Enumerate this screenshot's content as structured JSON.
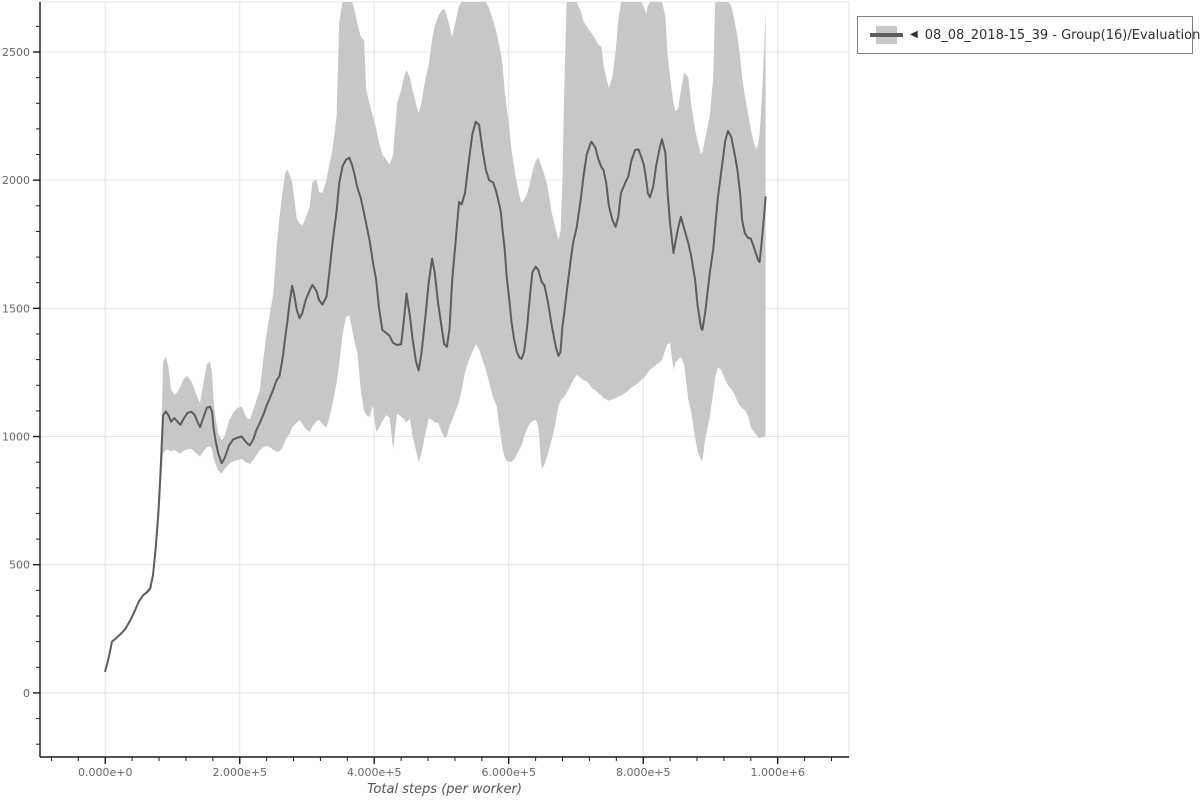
{
  "colors": {
    "background": "#ffffff",
    "band": "#c7c7c7",
    "line": "#5d5d5d",
    "grid": "#e5e5e5",
    "outline": "#e5e5e5",
    "axis": "#1a1a1a",
    "tick_label": "#666666",
    "axis_title": "#555555",
    "legend_border": "#808080",
    "legend_text": "#2f2f2f"
  },
  "legend": {
    "marker": "◀",
    "label": "08_08_2018-15_39 - Group(16)/Evaluation Reward"
  },
  "chart_data": {
    "type": "line",
    "title": "",
    "xlabel": "Total steps (per worker)",
    "ylabel": "",
    "series": [
      {
        "name": "08_08_2018-15_39 - Group(16)/Evaluation Reward",
        "style": "mean line with std-dev band"
      }
    ],
    "grid": true,
    "legend_position": "top-right-outside",
    "xlim": [
      -97000,
      1106000
    ],
    "ylim": [
      -250,
      2695
    ],
    "x_unit_multiplier": 1000,
    "x_ticks": [
      {
        "v": 0,
        "label": "0.000e+0"
      },
      {
        "v": 200000,
        "label": "2.000e+5"
      },
      {
        "v": 400000,
        "label": "4.000e+5"
      },
      {
        "v": 600000,
        "label": "6.000e+5"
      },
      {
        "v": 800000,
        "label": "8.000e+5"
      },
      {
        "v": 1000000,
        "label": "1.000e+6"
      }
    ],
    "y_ticks": [
      {
        "v": 0,
        "label": "0"
      },
      {
        "v": 500,
        "label": "500"
      },
      {
        "v": 1000,
        "label": "1000"
      },
      {
        "v": 1500,
        "label": "1500"
      },
      {
        "v": 2000,
        "label": "2000"
      },
      {
        "v": 2500,
        "label": "2500"
      }
    ],
    "x_minor": {
      "step": 40000,
      "from": -80000,
      "to": 1080000
    },
    "y_minor": {
      "step": 100,
      "from": -200,
      "to": 2600
    },
    "points_format": [
      "steps_k",
      "mean",
      "band_low",
      "band_high"
    ],
    "points": [
      [
        0,
        85,
        85,
        85
      ],
      [
        5,
        135,
        135,
        135
      ],
      [
        10,
        200,
        200,
        200
      ],
      [
        16,
        213,
        213,
        213
      ],
      [
        23,
        230,
        230,
        230
      ],
      [
        30,
        250,
        250,
        250
      ],
      [
        37,
        282,
        282,
        282
      ],
      [
        44,
        320,
        320,
        320
      ],
      [
        50,
        357,
        357,
        357
      ],
      [
        56,
        380,
        380,
        380
      ],
      [
        62,
        393,
        386,
        400
      ],
      [
        67,
        408,
        396,
        422
      ],
      [
        71,
        460,
        438,
        484
      ],
      [
        75,
        565,
        528,
        600
      ],
      [
        79,
        705,
        645,
        762
      ],
      [
        82,
        850,
        765,
        930
      ],
      [
        84,
        965,
        858,
        1072
      ],
      [
        86,
        1082,
        932,
        1290
      ],
      [
        90,
        1098,
        948,
        1312
      ],
      [
        94,
        1083,
        948,
        1272
      ],
      [
        98,
        1058,
        942,
        1182
      ],
      [
        103,
        1072,
        948,
        1162
      ],
      [
        108,
        1056,
        938,
        1176
      ],
      [
        112,
        1046,
        933,
        1196
      ],
      [
        116,
        1066,
        944,
        1222
      ],
      [
        122,
        1092,
        950,
        1236
      ],
      [
        128,
        1097,
        952,
        1216
      ],
      [
        133,
        1084,
        940,
        1182
      ],
      [
        138,
        1052,
        928,
        1146
      ],
      [
        141,
        1037,
        922,
        1132
      ],
      [
        145,
        1066,
        938,
        1192
      ],
      [
        151,
        1112,
        958,
        1282
      ],
      [
        156,
        1116,
        962,
        1292
      ],
      [
        159,
        1094,
        948,
        1242
      ],
      [
        161,
        1035,
        918,
        1142
      ],
      [
        164,
        985,
        893,
        1072
      ],
      [
        168,
        935,
        868,
        1012
      ],
      [
        173,
        896,
        856,
        986
      ],
      [
        178,
        918,
        874,
        1002
      ],
      [
        184,
        965,
        893,
        1062
      ],
      [
        190,
        988,
        903,
        1092
      ],
      [
        197,
        996,
        908,
        1112
      ],
      [
        203,
        1000,
        913,
        1116
      ],
      [
        207,
        986,
        903,
        1092
      ],
      [
        211,
        974,
        898,
        1072
      ],
      [
        215,
        966,
        893,
        1066
      ],
      [
        220,
        988,
        908,
        1102
      ],
      [
        225,
        1026,
        928,
        1142
      ],
      [
        230,
        1054,
        948,
        1182
      ],
      [
        235,
        1085,
        958,
        1302
      ],
      [
        240,
        1120,
        963,
        1402
      ],
      [
        245,
        1152,
        958,
        1482
      ],
      [
        250,
        1185,
        948,
        1562
      ],
      [
        255,
        1220,
        940,
        1740
      ],
      [
        259,
        1235,
        942,
        1852
      ],
      [
        264,
        1310,
        958,
        1962
      ],
      [
        268,
        1395,
        988,
        2032
      ],
      [
        271,
        1452,
        1000,
        2040
      ],
      [
        274,
        1520,
        1008,
        2022
      ],
      [
        278,
        1588,
        1037,
        1993
      ],
      [
        281,
        1552,
        1044,
        1930
      ],
      [
        285,
        1492,
        1054,
        1848
      ],
      [
        289,
        1462,
        1065,
        1833
      ],
      [
        293,
        1482,
        1050,
        1822
      ],
      [
        298,
        1532,
        1030,
        1852
      ],
      [
        304,
        1570,
        1018,
        1896
      ],
      [
        308,
        1592,
        1040,
        1993
      ],
      [
        314,
        1568,
        1060,
        2001
      ],
      [
        318,
        1532,
        1065,
        1954
      ],
      [
        323,
        1515,
        1048,
        1950
      ],
      [
        329,
        1545,
        1035,
        2001
      ],
      [
        333,
        1635,
        1070,
        2059
      ],
      [
        338,
        1755,
        1128,
        2118
      ],
      [
        344,
        1880,
        1208,
        2250
      ],
      [
        348,
        1990,
        1287,
        2620
      ],
      [
        353,
        2055,
        1400,
        2695
      ],
      [
        358,
        2080,
        1466,
        2695
      ],
      [
        363,
        2088,
        1474,
        2695
      ],
      [
        367,
        2060,
        1420,
        2695
      ],
      [
        371,
        2020,
        1368,
        2662
      ],
      [
        375,
        1970,
        1328,
        2610
      ],
      [
        380,
        1930,
        1180,
        2560
      ],
      [
        385,
        1870,
        1100,
        2546
      ],
      [
        388,
        1830,
        1084,
        2352
      ],
      [
        393,
        1767,
        1076,
        2300
      ],
      [
        398,
        1680,
        1120,
        2250
      ],
      [
        403,
        1610,
        1018,
        2200
      ],
      [
        407,
        1505,
        1032,
        2150
      ],
      [
        412,
        1416,
        1060,
        2100
      ],
      [
        418,
        1404,
        1084,
        2080
      ],
      [
        423,
        1392,
        1072,
        2060
      ],
      [
        428,
        1365,
        950,
        2100
      ],
      [
        434,
        1357,
        1088,
        2300
      ],
      [
        440,
        1360,
        1078,
        2350
      ],
      [
        444,
        1450,
        1068,
        2400
      ],
      [
        448,
        1558,
        1055,
        2430
      ],
      [
        453,
        1470,
        1070,
        2400
      ],
      [
        457,
        1380,
        1000,
        2350
      ],
      [
        462,
        1295,
        948,
        2300
      ],
      [
        466,
        1258,
        900,
        2260
      ],
      [
        470,
        1320,
        930,
        2300
      ],
      [
        475,
        1440,
        1000,
        2380
      ],
      [
        481,
        1600,
        1070,
        2450
      ],
      [
        486,
        1694,
        1065,
        2550
      ],
      [
        490,
        1640,
        1056,
        2600
      ],
      [
        495,
        1520,
        1053,
        2640
      ],
      [
        500,
        1430,
        1020,
        2660
      ],
      [
        504,
        1360,
        995,
        2670
      ],
      [
        508,
        1350,
        1000,
        2640
      ],
      [
        512,
        1420,
        1040,
        2600
      ],
      [
        516,
        1611,
        1065,
        2560
      ],
      [
        521,
        1760,
        1100,
        2620
      ],
      [
        526,
        1915,
        1135,
        2680
      ],
      [
        530,
        1905,
        1180,
        2695
      ],
      [
        535,
        1950,
        1250,
        2695
      ],
      [
        541,
        2080,
        1299,
        2695
      ],
      [
        546,
        2180,
        1330,
        2695
      ],
      [
        551,
        2228,
        1360,
        2695
      ],
      [
        556,
        2215,
        1340,
        2695
      ],
      [
        561,
        2120,
        1300,
        2695
      ],
      [
        566,
        2040,
        1260,
        2695
      ],
      [
        571,
        2000,
        1210,
        2670
      ],
      [
        577,
        1990,
        1150,
        2620
      ],
      [
        582,
        1950,
        1120,
        2574
      ],
      [
        588,
        1880,
        1000,
        2500
      ],
      [
        591,
        1800,
        950,
        2440
      ],
      [
        594,
        1730,
        920,
        2350
      ],
      [
        597,
        1623,
        905,
        2280
      ],
      [
        601,
        1530,
        901,
        2200
      ],
      [
        604,
        1450,
        902,
        2120
      ],
      [
        608,
        1380,
        910,
        2050
      ],
      [
        612,
        1330,
        930,
        1990
      ],
      [
        616,
        1307,
        950,
        1940
      ],
      [
        619,
        1303,
        965,
        1912
      ],
      [
        623,
        1330,
        1000,
        1925
      ],
      [
        627,
        1420,
        1030,
        1945
      ],
      [
        631,
        1533,
        1050,
        1980
      ],
      [
        635,
        1640,
        1060,
        2030
      ],
      [
        640,
        1662,
        1065,
        2075
      ],
      [
        644,
        1650,
        1040,
        2090
      ],
      [
        649,
        1603,
        872,
        2051
      ],
      [
        653,
        1590,
        890,
        2020
      ],
      [
        658,
        1530,
        930,
        1973
      ],
      [
        664,
        1432,
        990,
        1872
      ],
      [
        670,
        1349,
        1060,
        1806
      ],
      [
        674,
        1315,
        1120,
        1767
      ],
      [
        677,
        1330,
        1140,
        1800
      ],
      [
        680,
        1432,
        1150,
        2000
      ],
      [
        682,
        1470,
        1152,
        2300
      ],
      [
        686,
        1560,
        1170,
        2695
      ],
      [
        692,
        1686,
        1200,
        2695
      ],
      [
        696,
        1760,
        1220,
        2695
      ],
      [
        701,
        1814,
        1240,
        2695
      ],
      [
        707,
        1923,
        1230,
        2660
      ],
      [
        711,
        2013,
        1220,
        2620
      ],
      [
        716,
        2100,
        1215,
        2600
      ],
      [
        721,
        2139,
        1200,
        2580
      ],
      [
        723,
        2150,
        1190,
        2574
      ],
      [
        729,
        2126,
        1180,
        2550
      ],
      [
        733,
        2083,
        1170,
        2530
      ],
      [
        738,
        2050,
        1160,
        2519
      ],
      [
        741,
        2040,
        1150,
        2450
      ],
      [
        745,
        1989,
        1145,
        2400
      ],
      [
        749,
        1900,
        1140,
        2360
      ],
      [
        754,
        1845,
        1145,
        2400
      ],
      [
        759,
        1818,
        1150,
        2500
      ],
      [
        763,
        1857,
        1155,
        2620
      ],
      [
        767,
        1950,
        1160,
        2695
      ],
      [
        773,
        1989,
        1170,
        2695
      ],
      [
        778,
        2015,
        1180,
        2695
      ],
      [
        782,
        2072,
        1190,
        2695
      ],
      [
        788,
        2118,
        1200,
        2695
      ],
      [
        793,
        2120,
        1210,
        2695
      ],
      [
        797,
        2092,
        1220,
        2695
      ],
      [
        801,
        2060,
        1230,
        2670
      ],
      [
        805,
        1990,
        1240,
        2650
      ],
      [
        807,
        1950,
        1250,
        2680
      ],
      [
        810,
        1933,
        1260,
        2695
      ],
      [
        815,
        1976,
        1270,
        2695
      ],
      [
        819,
        2053,
        1280,
        2695
      ],
      [
        825,
        2131,
        1290,
        2695
      ],
      [
        828,
        2160,
        1300,
        2695
      ],
      [
        833,
        2105,
        1340,
        2640
      ],
      [
        836,
        1962,
        1360,
        2500
      ],
      [
        840,
        1830,
        1365,
        2400
      ],
      [
        845,
        1716,
        1260,
        2300
      ],
      [
        848,
        1760,
        1290,
        2270
      ],
      [
        852,
        1814,
        1300,
        2280
      ],
      [
        856,
        1857,
        1310,
        2350
      ],
      [
        861,
        1810,
        1280,
        2420
      ],
      [
        867,
        1755,
        1143,
        2400
      ],
      [
        871,
        1708,
        1100,
        2300
      ],
      [
        877,
        1614,
        998,
        2200
      ],
      [
        881,
        1508,
        940,
        2150
      ],
      [
        886,
        1423,
        909,
        2100
      ],
      [
        888,
        1416,
        905,
        2110
      ],
      [
        892,
        1481,
        987,
        2160
      ],
      [
        899,
        1638,
        1076,
        2250
      ],
      [
        904,
        1730,
        1170,
        2400
      ],
      [
        907,
        1818,
        1230,
        2695
      ],
      [
        911,
        1934,
        1271,
        2695
      ],
      [
        916,
        2032,
        1260,
        2695
      ],
      [
        922,
        2155,
        1221,
        2695
      ],
      [
        926,
        2192,
        1200,
        2695
      ],
      [
        931,
        2168,
        1185,
        2680
      ],
      [
        936,
        2100,
        1165,
        2620
      ],
      [
        940,
        2040,
        1135,
        2560
      ],
      [
        944,
        1950,
        1120,
        2480
      ],
      [
        947,
        1845,
        1110,
        2400
      ],
      [
        951,
        1794,
        1104,
        2330
      ],
      [
        956,
        1775,
        1080,
        2260
      ],
      [
        960,
        1772,
        1037,
        2200
      ],
      [
        964,
        1743,
        1020,
        2150
      ],
      [
        968,
        1710,
        1008,
        2120
      ],
      [
        971,
        1688,
        998,
        2140
      ],
      [
        973,
        1681,
        994,
        2180
      ],
      [
        976,
        1755,
        996,
        2300
      ],
      [
        980,
        1870,
        1000,
        2520
      ],
      [
        982,
        1934,
        1005,
        2664
      ]
    ]
  }
}
